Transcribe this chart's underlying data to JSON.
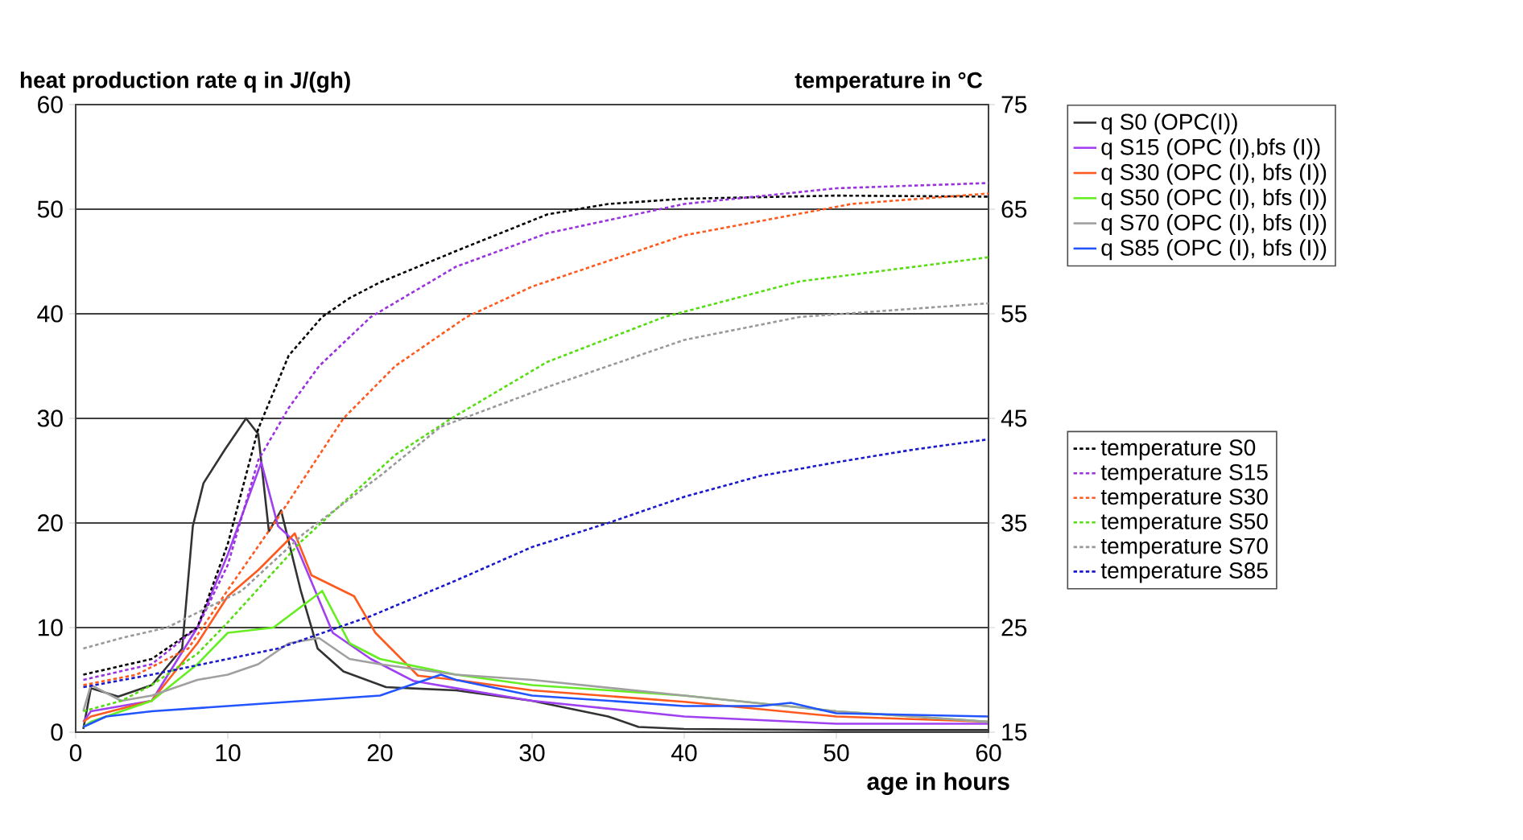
{
  "chart_data": {
    "type": "line",
    "ylabel": "heat production rate q in J/(gh)",
    "y2label": "temperature in °C",
    "xlabel": "age in hours",
    "xlim": [
      0,
      60
    ],
    "xticks": [
      0,
      10,
      20,
      30,
      40,
      50,
      60
    ],
    "ylim": [
      0,
      60
    ],
    "yticks": [
      0,
      10,
      20,
      30,
      40,
      50,
      60
    ],
    "y2lim": [
      15,
      75
    ],
    "y2ticks": [
      15,
      25,
      35,
      45,
      55,
      65,
      75
    ],
    "grid": "y",
    "legend": "right",
    "marker": "none",
    "series": [
      {
        "name": "q S0 (OPC(I))",
        "color": "#333333",
        "line_style": "solid",
        "x": [
          0.5,
          1,
          2.8,
          5,
          7,
          7.7,
          8.4,
          9.8,
          11.2,
          12,
          12.7,
          13.5,
          14.8,
          15.9,
          17.6,
          20.4,
          25,
          30,
          35,
          37,
          40,
          50,
          60
        ],
        "values": [
          0.3,
          4.2,
          3.4,
          4.5,
          8,
          19.7,
          23.8,
          27,
          30,
          28.5,
          19.2,
          21.2,
          13.5,
          8,
          5.8,
          4.3,
          4,
          3,
          1.5,
          0.5,
          0.3,
          0.2,
          0.2
        ]
      },
      {
        "name": "q S15 (OPC (I),bfs (I))",
        "color": "#a040f0",
        "line_style": "solid",
        "x": [
          0.5,
          1,
          5,
          8,
          10,
          12.2,
          13.3,
          14.4,
          16.9,
          19.4,
          22.2,
          25,
          30,
          40,
          50,
          60
        ],
        "values": [
          1,
          2,
          3,
          10,
          17,
          25.8,
          19.7,
          18.2,
          9.5,
          7,
          4.9,
          4.2,
          3,
          1.5,
          0.8,
          0.8
        ]
      },
      {
        "name": "q S30 (OPC (I), bfs (I))",
        "color": "#ff5a1e",
        "line_style": "solid",
        "x": [
          0.5,
          1,
          5,
          8,
          10,
          12,
          14.4,
          15.5,
          18.3,
          19.7,
          22.5,
          25,
          30,
          40,
          50,
          60
        ],
        "values": [
          1,
          1.5,
          3,
          8.5,
          13,
          15.5,
          19,
          15,
          13,
          9.5,
          5.4,
          5,
          4,
          2.9,
          1.5,
          1
        ]
      },
      {
        "name": "q S50 (OPC (I), bfs (I))",
        "color": "#66ee22",
        "line_style": "solid",
        "x": [
          0.5,
          1,
          5,
          8,
          10,
          13,
          16.2,
          18,
          20,
          25,
          30,
          40,
          50,
          60
        ],
        "values": [
          0.5,
          1,
          3,
          6.5,
          9.5,
          10,
          13.5,
          8.5,
          7,
          5.5,
          4.5,
          3.5,
          2,
          1
        ]
      },
      {
        "name": "q S70 (OPC (I), bfs (I))",
        "color": "#a0a0a0",
        "line_style": "solid",
        "x": [
          0.5,
          1,
          3,
          5,
          8,
          10,
          12,
          14,
          16,
          18,
          20,
          25,
          30,
          40,
          50,
          60
        ],
        "values": [
          2,
          4.5,
          3,
          3.5,
          5,
          5.5,
          6.5,
          8.5,
          9,
          7,
          6.5,
          5.5,
          5,
          3.5,
          2,
          1
        ]
      },
      {
        "name": "q S85 (OPC (I), bfs (I))",
        "color": "#2255ff",
        "line_style": "solid",
        "x": [
          0.5,
          2,
          5,
          10,
          15,
          20,
          22,
          24,
          25,
          30,
          40,
          45,
          47,
          50,
          60
        ],
        "values": [
          0.5,
          1.5,
          2,
          2.5,
          3,
          3.5,
          4.5,
          5.5,
          5,
          3.5,
          2.5,
          2.5,
          2.8,
          1.8,
          1.5
        ]
      },
      {
        "name": "temperature S0",
        "color": "#000000",
        "line_style": "dotted",
        "axis": "y2",
        "x": [
          0.5,
          5,
          8,
          10,
          12,
          14,
          16.2,
          18,
          20,
          25,
          31,
          35,
          40,
          50,
          60
        ],
        "values": [
          20.5,
          22,
          25,
          33,
          44,
          51,
          54.7,
          56.5,
          58,
          61,
          64.5,
          65.5,
          66,
          66.3,
          66.2
        ]
      },
      {
        "name": "temperature S15",
        "color": "#9933dd",
        "line_style": "dotted",
        "axis": "y2",
        "x": [
          0.5,
          5,
          8,
          10,
          12,
          14,
          16,
          19.4,
          25,
          31,
          40,
          50,
          60
        ],
        "values": [
          20,
          21.5,
          25,
          31,
          41,
          46,
          50,
          54.7,
          59.5,
          62.7,
          65.5,
          67,
          67.5
        ]
      },
      {
        "name": "temperature S30",
        "color": "#ff5a1e",
        "line_style": "dotted",
        "axis": "y2",
        "x": [
          0.5,
          4,
          7.4,
          10,
          13.3,
          17.6,
          21,
          25.7,
          30,
          40,
          51,
          60
        ],
        "values": [
          19.5,
          20.5,
          23,
          28.6,
          35.5,
          45,
          50,
          54.7,
          57.6,
          62.5,
          65.5,
          66.5
        ]
      },
      {
        "name": "temperature S50",
        "color": "#55dd11",
        "line_style": "dotted",
        "axis": "y2",
        "x": [
          0.5,
          3,
          5,
          8,
          10,
          14.8,
          18,
          21,
          24.7,
          31,
          38.7,
          47.6,
          60
        ],
        "values": [
          17,
          18,
          19.5,
          22.5,
          25.5,
          33.2,
          37.5,
          41.5,
          45,
          50.4,
          54.7,
          58.1,
          60.4
        ]
      },
      {
        "name": "temperature S70",
        "color": "#999999",
        "line_style": "dotted",
        "axis": "y2",
        "x": [
          0.5,
          3,
          6,
          10.9,
          15,
          20,
          24,
          31,
          40,
          47.6,
          60
        ],
        "values": [
          23,
          24,
          25,
          28.5,
          34,
          39.5,
          44.2,
          48,
          52.5,
          54.7,
          56
        ]
      },
      {
        "name": "temperature S85",
        "color": "#1a1acc",
        "line_style": "dotted",
        "axis": "y2",
        "x": [
          0.5,
          5,
          10,
          13.3,
          19.4,
          25,
          30,
          35,
          40,
          45,
          50,
          55,
          60
        ],
        "values": [
          19.3,
          20.5,
          22,
          23,
          26.1,
          29.5,
          32.7,
          35,
          37.5,
          39.5,
          40.8,
          42,
          43
        ]
      }
    ]
  }
}
